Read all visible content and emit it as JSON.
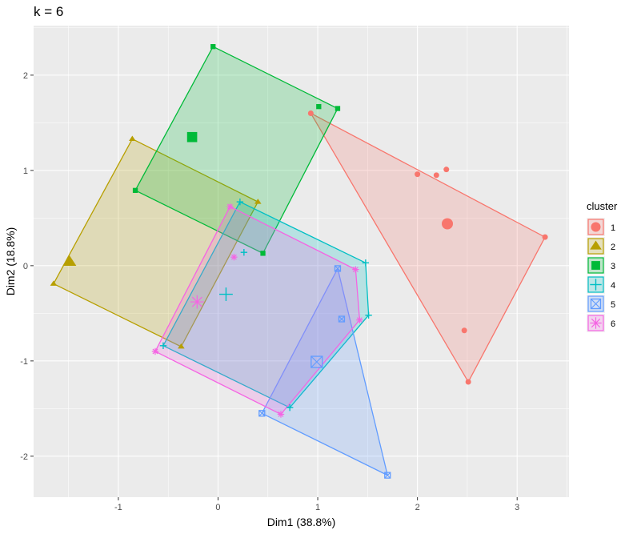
{
  "chart_data": {
    "type": "scatter",
    "title": "k = 6",
    "xlabel": "Dim1 (38.8%)",
    "ylabel": "Dim2 (18.8%)",
    "xlim": [
      -1.85,
      3.52
    ],
    "ylim": [
      -2.43,
      2.52
    ],
    "x_ticks": [
      -1,
      0,
      1,
      2,
      3
    ],
    "x_tick_labels": [
      "-1",
      "0",
      "1",
      "2",
      "3"
    ],
    "y_ticks": [
      -2,
      -1,
      0,
      1,
      2
    ],
    "y_tick_labels": [
      "-2",
      "-1",
      "0",
      "1",
      "2"
    ],
    "grid": true,
    "legend": {
      "title": "cluster",
      "placement": "right"
    },
    "series": [
      {
        "name": "1",
        "color": "#F8766D",
        "shape": "circle",
        "points": [
          [
            0.93,
            1.6
          ],
          [
            2.0,
            0.96
          ],
          [
            2.19,
            0.95
          ],
          [
            2.29,
            1.01
          ],
          [
            3.28,
            0.3
          ],
          [
            2.47,
            -0.68
          ],
          [
            2.51,
            -1.22
          ]
        ],
        "hull": [
          [
            0.93,
            1.6
          ],
          [
            3.28,
            0.3
          ],
          [
            2.51,
            -1.22
          ]
        ],
        "centroid": [
          2.3,
          0.44
        ]
      },
      {
        "name": "2",
        "color": "#B79F00",
        "shape": "triangle",
        "points": [
          [
            -1.65,
            -0.19
          ],
          [
            -0.86,
            1.33
          ],
          [
            0.4,
            0.67
          ],
          [
            -0.37,
            -0.85
          ]
        ],
        "hull": [
          [
            -1.65,
            -0.19
          ],
          [
            -0.86,
            1.33
          ],
          [
            0.4,
            0.67
          ],
          [
            -0.37,
            -0.85
          ]
        ],
        "centroid": [
          -1.49,
          0.04
        ]
      },
      {
        "name": "3",
        "color": "#00BA38",
        "shape": "square",
        "points": [
          [
            -0.05,
            2.3
          ],
          [
            1.01,
            1.67
          ],
          [
            1.2,
            1.65
          ],
          [
            -0.83,
            0.79
          ],
          [
            0.45,
            0.13
          ]
        ],
        "hull": [
          [
            -0.05,
            2.3
          ],
          [
            1.2,
            1.65
          ],
          [
            0.45,
            0.13
          ],
          [
            -0.83,
            0.79
          ]
        ],
        "centroid": [
          -0.26,
          1.35
        ]
      },
      {
        "name": "4",
        "color": "#00BFC4",
        "shape": "plus",
        "points": [
          [
            0.22,
            0.67
          ],
          [
            0.26,
            0.14
          ],
          [
            1.48,
            0.03
          ],
          [
            1.51,
            -0.52
          ],
          [
            0.72,
            -1.49
          ],
          [
            -0.55,
            -0.84
          ]
        ],
        "hull": [
          [
            0.22,
            0.67
          ],
          [
            1.48,
            0.03
          ],
          [
            1.51,
            -0.52
          ],
          [
            0.72,
            -1.49
          ],
          [
            -0.55,
            -0.84
          ]
        ],
        "centroid": [
          0.08,
          -0.3
        ]
      },
      {
        "name": "5",
        "color": "#619CFF",
        "shape": "square-cross",
        "points": [
          [
            1.2,
            -0.03
          ],
          [
            1.24,
            -0.56
          ],
          [
            0.44,
            -1.55
          ],
          [
            1.7,
            -2.2
          ]
        ],
        "hull": [
          [
            1.2,
            -0.03
          ],
          [
            1.7,
            -2.2
          ],
          [
            0.44,
            -1.55
          ]
        ],
        "centroid": [
          0.99,
          -1.01
        ]
      },
      {
        "name": "6",
        "color": "#F564E3",
        "shape": "asterisk",
        "points": [
          [
            0.12,
            0.62
          ],
          [
            0.16,
            0.09
          ],
          [
            1.38,
            -0.04
          ],
          [
            1.42,
            -0.57
          ],
          [
            0.63,
            -1.56
          ],
          [
            -0.63,
            -0.9
          ]
        ],
        "hull": [
          [
            0.12,
            0.62
          ],
          [
            1.38,
            -0.04
          ],
          [
            1.42,
            -0.57
          ],
          [
            0.63,
            -1.56
          ],
          [
            -0.63,
            -0.9
          ]
        ],
        "centroid": [
          -0.21,
          -0.38
        ]
      }
    ]
  }
}
